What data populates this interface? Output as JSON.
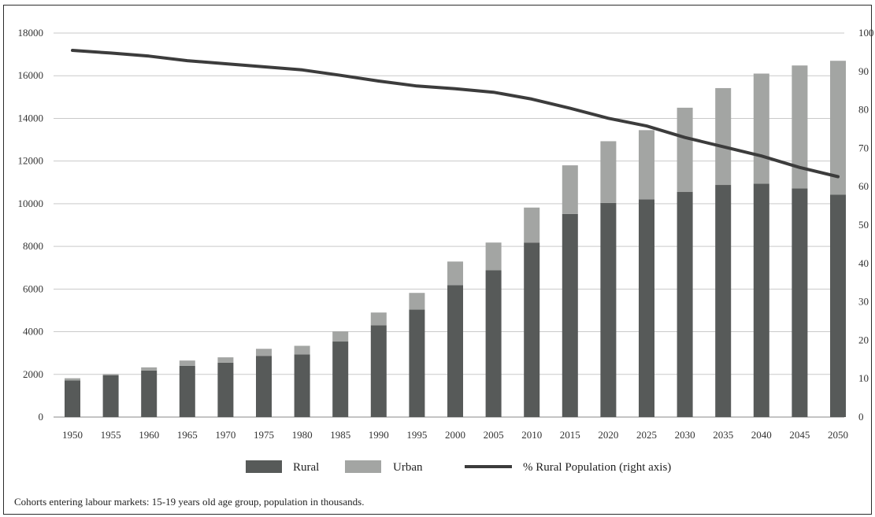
{
  "chart_data": {
    "type": "bar",
    "stacked": true,
    "title": "",
    "categories": [
      "1950",
      "1955",
      "1960",
      "1965",
      "1970",
      "1975",
      "1980",
      "1985",
      "1990",
      "1995",
      "2000",
      "2005",
      "2010",
      "2015",
      "2020",
      "2025",
      "2030",
      "2035",
      "2040",
      "2045",
      "2050"
    ],
    "series": [
      {
        "name": "Rural",
        "kind": "bar",
        "axis": "left",
        "color": "#575a59",
        "values": [
          1720,
          1960,
          2180,
          2400,
          2550,
          2870,
          2940,
          3540,
          4300,
          5040,
          6180,
          6880,
          8180,
          9520,
          10040,
          10200,
          10560,
          10880,
          10940,
          10720,
          10420
        ]
      },
      {
        "name": "Urban",
        "kind": "bar",
        "axis": "left",
        "color": "#a3a5a3",
        "values": [
          100,
          60,
          150,
          250,
          250,
          330,
          400,
          480,
          600,
          780,
          1110,
          1300,
          1640,
          2280,
          2890,
          3250,
          3940,
          4540,
          5160,
          5760,
          6280
        ]
      },
      {
        "name": "% Rural Population (right axis)",
        "kind": "line",
        "axis": "right",
        "color": "#3c3c3c",
        "values": [
          95.5,
          94.8,
          94.0,
          92.8,
          92.0,
          91.2,
          90.4,
          89.0,
          87.5,
          86.2,
          85.5,
          84.6,
          82.8,
          80.4,
          77.8,
          75.8,
          72.8,
          70.4,
          68.0,
          65.0,
          62.6
        ]
      }
    ],
    "y_left": {
      "ylim": [
        0,
        18000
      ],
      "ticks": [
        "0",
        "2000",
        "4000",
        "6000",
        "8000",
        "10000",
        "12000",
        "14000",
        "16000",
        "18000"
      ]
    },
    "y_right": {
      "ylim": [
        0,
        100
      ],
      "ticks": [
        "0",
        "10",
        "20",
        "30",
        "40",
        "50",
        "60",
        "70",
        "80",
        "90",
        "100"
      ]
    },
    "grid": true,
    "legend": {
      "position": "bottom-center",
      "items": [
        "Rural",
        "Urban",
        "% Rural Population (right axis)"
      ]
    },
    "caption": "Cohorts entering labour markets: 15-19 years old age group, population in thousands."
  }
}
